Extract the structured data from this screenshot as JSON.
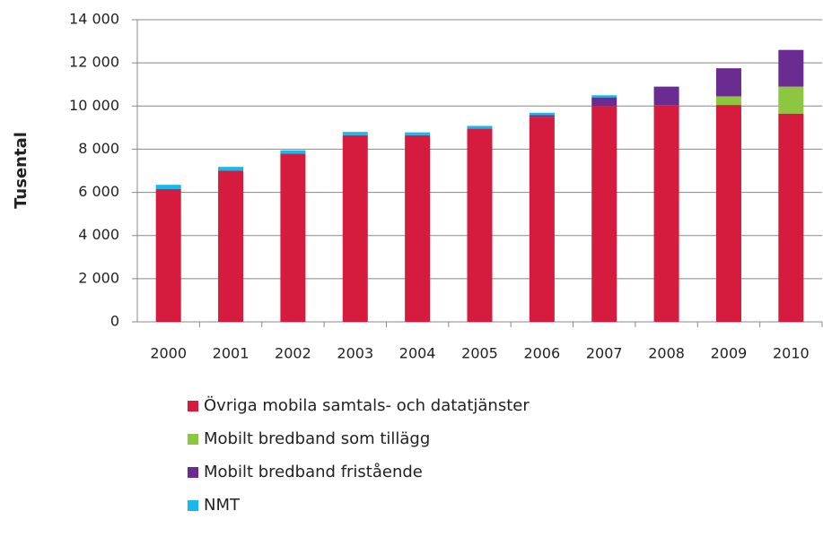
{
  "chart_data": {
    "type": "stacked_bar",
    "y_label": "Tusental",
    "categories": [
      "2000",
      "2001",
      "2002",
      "2003",
      "2004",
      "2005",
      "2006",
      "2007",
      "2008",
      "2009",
      "2010"
    ],
    "series": [
      {
        "name": "Övriga mobila samtals- och datatjänster",
        "color": "#d51c3e",
        "values": [
          6150,
          7000,
          7800,
          8650,
          8650,
          8950,
          9500,
          10000,
          10050,
          10050,
          9650
        ]
      },
      {
        "name": "Mobilt bredband som tillägg",
        "color": "#8dc63f",
        "values": [
          0,
          0,
          0,
          0,
          0,
          0,
          0,
          0,
          0,
          400,
          1250
        ]
      },
      {
        "name": "Mobilt bredband fristående",
        "color": "#6a2c91",
        "values": [
          0,
          0,
          0,
          0,
          0,
          0,
          80,
          400,
          850,
          1300,
          1700
        ]
      },
      {
        "name": "NMT",
        "color": "#1ab7ea",
        "values": [
          200,
          180,
          150,
          150,
          130,
          130,
          110,
          100,
          0,
          0,
          0
        ]
      }
    ],
    "ylim": [
      0,
      14000
    ],
    "yticks": [
      0,
      {
        "value": 2000,
        "label": "2 000"
      },
      {
        "value": 4000,
        "label": "4 000"
      },
      {
        "value": 6000,
        "label": "6 000"
      },
      {
        "value": 8000,
        "label": "8 000"
      },
      {
        "value": 10000,
        "label": "10 000"
      },
      {
        "value": 12000,
        "label": "12 000"
      },
      {
        "value": 14000,
        "label": "14 000"
      }
    ],
    "grid": true
  }
}
